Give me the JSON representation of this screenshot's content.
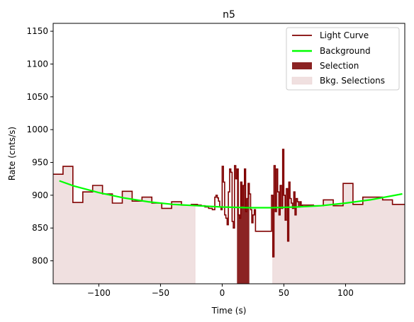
{
  "chart_data": {
    "type": "line",
    "title": "n5",
    "xlabel": "Time (s)",
    "ylabel": "Rate (cnts/s)",
    "xlim": [
      -137,
      148
    ],
    "ylim": [
      765,
      1162
    ],
    "xticks": [
      -100,
      -50,
      0,
      50,
      100
    ],
    "yticks": [
      800,
      850,
      900,
      950,
      1000,
      1050,
      1100,
      1150
    ],
    "legend_position": "top-right",
    "legend": [
      "Light Curve",
      "Background",
      "Selection",
      "Bkg. Selections"
    ],
    "colors": {
      "light_curve": "#800000",
      "background": "#00ff00",
      "selection": "#8b2323",
      "bkg_selection": "#f0e0e0"
    },
    "bkg_selections": [
      [
        -137,
        -22
      ],
      [
        41,
        148
      ]
    ],
    "selection": [
      12,
      22
    ],
    "background": {
      "x": [
        -132,
        -120,
        -100,
        -80,
        -60,
        -40,
        -20,
        0,
        20,
        40,
        60,
        80,
        100,
        120,
        146
      ],
      "y": [
        922,
        914,
        904,
        896,
        890,
        886,
        884,
        882,
        881,
        881,
        882,
        884,
        888,
        893,
        902
      ]
    },
    "light_curve": {
      "x": [
        -137,
        -129,
        -121,
        -113,
        -105,
        -97,
        -89,
        -81,
        -73,
        -65,
        -57,
        -49,
        -41,
        -33,
        -25,
        -22,
        -20,
        -17,
        -14,
        -11,
        -8,
        -6,
        -5,
        -4,
        -3,
        -2,
        -1,
        0,
        1,
        2,
        3,
        4,
        5,
        6,
        7,
        8,
        9,
        10,
        11,
        12,
        13,
        14,
        15,
        16,
        17,
        18,
        19,
        20,
        21,
        22,
        23,
        24,
        25,
        26,
        27,
        40,
        41,
        42,
        43,
        44,
        45,
        46,
        47,
        48,
        49,
        50,
        51,
        52,
        53,
        54,
        55,
        56,
        57,
        58,
        59,
        60,
        61,
        62,
        63,
        64,
        65,
        74,
        82,
        90,
        98,
        106,
        114,
        122,
        130,
        138,
        148
      ],
      "y": [
        932,
        944,
        889,
        905,
        915,
        902,
        888,
        906,
        891,
        897,
        888,
        880,
        890,
        885,
        886,
        886,
        885,
        884,
        882,
        880,
        878,
        897,
        900,
        896,
        891,
        882,
        878,
        944,
        920,
        870,
        865,
        855,
        905,
        940,
        935,
        860,
        850,
        945,
        925,
        940,
        870,
        865,
        920,
        885,
        915,
        940,
        875,
        895,
        918,
        902,
        878,
        858,
        870,
        878,
        845,
        900,
        806,
        945,
        875,
        940,
        905,
        870,
        915,
        880,
        970,
        900,
        862,
        910,
        830,
        920,
        895,
        888,
        880,
        905,
        870,
        895,
        890,
        882,
        890,
        884,
        885,
        884,
        893,
        884,
        918,
        886,
        897,
        897,
        893,
        886,
        886
      ]
    }
  }
}
